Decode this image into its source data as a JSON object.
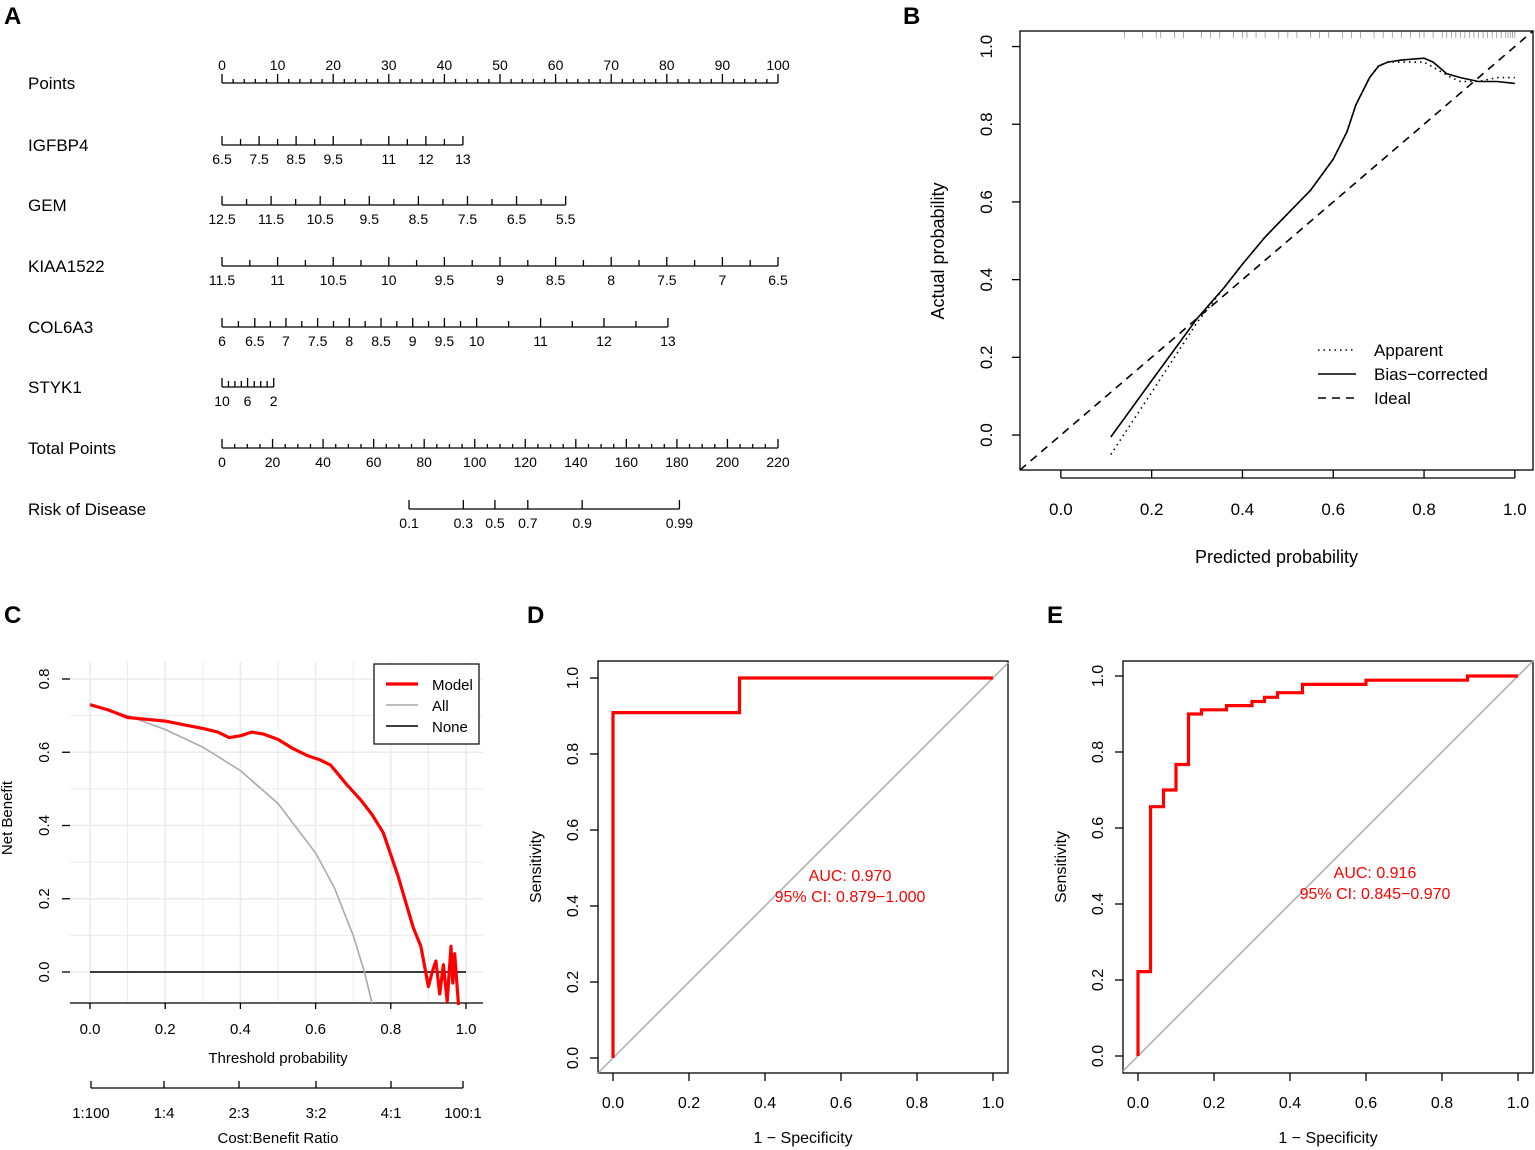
{
  "chart_data": [
    {
      "panel": "A",
      "type": "nomogram",
      "rows": [
        {
          "name": "Points",
          "ticks": [
            "0",
            "10",
            "20",
            "30",
            "40",
            "50",
            "60",
            "70",
            "80",
            "90",
            "100"
          ],
          "minor_per_major": 5,
          "labels_above": true
        },
        {
          "name": "IGFBP4",
          "ticks": [
            "6.5",
            "7.5",
            "8.5",
            "9.5",
            "11",
            "12",
            "13"
          ],
          "tick_points": [
            0,
            6.67,
            13.33,
            20,
            30,
            36.67,
            43.33
          ]
        },
        {
          "name": "GEM",
          "ticks": [
            "12.5",
            "11.5",
            "10.5",
            "9.5",
            "8.5",
            "7.5",
            "6.5",
            "5.5"
          ],
          "tick_points": [
            0,
            8.83,
            17.66,
            26.49,
            35.32,
            44.15,
            52.98,
            61.81
          ]
        },
        {
          "name": "KIAA1522",
          "ticks": [
            "11.5",
            "11",
            "10.5",
            "10",
            "9.5",
            "9",
            "8.5",
            "8",
            "7.5",
            "7",
            "6.5"
          ],
          "tick_points": [
            0,
            10,
            20,
            30,
            40,
            50,
            60,
            70,
            80,
            90,
            100
          ]
        },
        {
          "name": "COL6A3",
          "ticks": [
            "6",
            "6.5",
            "7",
            "7.5",
            "8",
            "8.5",
            "9",
            "9.5",
            "10",
            "11",
            "12",
            "13"
          ],
          "tick_points": [
            0,
            5.9,
            11.5,
            17.2,
            22.9,
            28.6,
            34.3,
            40.0,
            45.8,
            57.3,
            68.7,
            80.2
          ]
        },
        {
          "name": "STYK1",
          "ticks": [
            "10",
            "6",
            "2"
          ],
          "tick_points": [
            0,
            4.6,
            9.3
          ],
          "extra_ticks": [
            1.16,
            2.32,
            3.48,
            5.8,
            6.96,
            8.12
          ]
        },
        {
          "name": "Total Points",
          "ticks": [
            "0",
            "20",
            "40",
            "60",
            "80",
            "100",
            "120",
            "140",
            "160",
            "180",
            "200",
            "220"
          ],
          "range": [
            0,
            220
          ],
          "minor_per_major": 4
        },
        {
          "name": "Risk of Disease",
          "ticks": [
            "0.1",
            "0.3",
            "0.5",
            "0.7",
            "0.9",
            "0.99"
          ],
          "tick_totals": [
            74,
            95.5,
            108,
            121,
            142.5,
            181
          ]
        }
      ]
    },
    {
      "panel": "B",
      "type": "line",
      "xlabel": "Predicted probability",
      "ylabel": "Actual probability",
      "xlim": [
        -0.09,
        1.04
      ],
      "ylim": [
        -0.09,
        1.04
      ],
      "xticks": [
        "0.0",
        "0.2",
        "0.4",
        "0.6",
        "0.8",
        "1.0"
      ],
      "yticks": [
        "0.0",
        "0.2",
        "0.4",
        "0.6",
        "0.8",
        "1.0"
      ],
      "series": [
        {
          "name": "Apparent",
          "style": "dotted",
          "x": [
            0.11,
            0.2,
            0.3,
            0.36,
            0.4,
            0.45,
            0.5,
            0.55,
            0.6,
            0.63,
            0.65,
            0.68,
            0.7,
            0.72,
            0.75,
            0.8,
            0.83,
            0.86,
            0.88,
            0.92,
            0.96,
            1.0
          ],
          "y": [
            -0.05,
            0.11,
            0.29,
            0.38,
            0.44,
            0.51,
            0.57,
            0.63,
            0.71,
            0.78,
            0.85,
            0.92,
            0.95,
            0.96,
            0.96,
            0.96,
            0.94,
            0.92,
            0.91,
            0.91,
            0.92,
            0.92
          ]
        },
        {
          "name": "Bias−corrected",
          "style": "solid",
          "x": [
            0.11,
            0.2,
            0.3,
            0.36,
            0.4,
            0.45,
            0.5,
            0.55,
            0.6,
            0.63,
            0.65,
            0.68,
            0.7,
            0.72,
            0.75,
            0.8,
            0.82,
            0.85,
            0.88,
            0.92,
            0.96,
            1.0
          ],
          "y": [
            -0.005,
            0.14,
            0.3,
            0.38,
            0.44,
            0.51,
            0.57,
            0.63,
            0.71,
            0.78,
            0.85,
            0.92,
            0.95,
            0.96,
            0.965,
            0.97,
            0.96,
            0.93,
            0.92,
            0.91,
            0.91,
            0.905
          ]
        },
        {
          "name": "Ideal",
          "style": "dashed",
          "x": [
            -0.09,
            1.04
          ],
          "y": [
            -0.09,
            1.04
          ]
        }
      ],
      "rug": [
        0.14,
        0.18,
        0.21,
        0.22,
        0.25,
        0.27,
        0.31,
        0.33,
        0.35,
        0.38,
        0.4,
        0.41,
        0.43,
        0.45,
        0.48,
        0.5,
        0.52,
        0.55,
        0.57,
        0.59,
        0.62,
        0.64,
        0.66,
        0.69,
        0.71,
        0.73,
        0.75,
        0.77,
        0.79,
        0.8,
        0.82,
        0.84,
        0.85,
        0.86,
        0.87,
        0.88,
        0.89,
        0.9,
        0.91,
        0.92,
        0.93,
        0.94,
        0.95,
        0.96,
        0.97,
        0.98,
        0.985,
        0.99,
        0.995,
        1.0
      ],
      "legend": {
        "position": "bottom-right",
        "entries": [
          "Apparent",
          "Bias−corrected",
          "Ideal"
        ]
      }
    },
    {
      "panel": "C",
      "type": "line",
      "xlabel": "Threshold probability",
      "ylabel": "Net Benefit",
      "xticks": [
        "0.0",
        "0.2",
        "0.4",
        "0.6",
        "0.8",
        "1.0"
      ],
      "yticks": [
        "0.0",
        "0.2",
        "0.4",
        "0.6",
        "0.8"
      ],
      "ylim": [
        -0.08,
        0.8
      ],
      "xlabel2": "Cost:Benefit Ratio",
      "x2ticks": [
        "1:100",
        "1:4",
        "2:3",
        "3:2",
        "4:1",
        "100:1"
      ],
      "series": [
        {
          "name": "Model",
          "color": "#ff0000",
          "x": [
            0,
            0.05,
            0.1,
            0.15,
            0.2,
            0.25,
            0.3,
            0.34,
            0.37,
            0.4,
            0.43,
            0.46,
            0.5,
            0.54,
            0.58,
            0.61,
            0.64,
            0.66,
            0.68,
            0.72,
            0.75,
            0.78,
            0.8,
            0.82,
            0.84,
            0.86,
            0.88,
            0.9,
            0.91,
            0.92,
            0.93,
            0.94,
            0.95,
            0.96,
            0.965,
            0.97,
            0.98
          ],
          "y": [
            0.73,
            0.715,
            0.695,
            0.69,
            0.685,
            0.675,
            0.665,
            0.655,
            0.64,
            0.645,
            0.655,
            0.65,
            0.635,
            0.61,
            0.59,
            0.58,
            0.565,
            0.54,
            0.515,
            0.47,
            0.43,
            0.38,
            0.32,
            0.26,
            0.19,
            0.12,
            0.07,
            -0.04,
            0.0,
            0.03,
            -0.06,
            0.02,
            -0.08,
            0.07,
            -0.03,
            0.05,
            -0.09
          ]
        },
        {
          "name": "All",
          "color": "#aaaaaa",
          "x": [
            0,
            0.1,
            0.2,
            0.3,
            0.4,
            0.5,
            0.6,
            0.65,
            0.7,
            0.73,
            0.75
          ],
          "y": [
            0.73,
            0.7,
            0.662,
            0.614,
            0.55,
            0.46,
            0.325,
            0.23,
            0.1,
            0.0,
            -0.085
          ]
        },
        {
          "name": "None",
          "color": "#000000",
          "x": [
            0,
            1
          ],
          "y": [
            0,
            0
          ]
        }
      ],
      "legend": {
        "position": "top-right",
        "entries": [
          "Model",
          "All",
          "None"
        ]
      }
    },
    {
      "panel": "D",
      "type": "line",
      "xlabel": "1 − Specificity",
      "ylabel": "Sensitivity",
      "xticks": [
        "0.0",
        "0.2",
        "0.4",
        "0.6",
        "0.8",
        "1.0"
      ],
      "yticks": [
        "0.0",
        "0.2",
        "0.4",
        "0.6",
        "0.8",
        "1.0"
      ],
      "series": [
        {
          "name": "ROC",
          "color": "#ff0000",
          "x": [
            0,
            0,
            0.333,
            0.333,
            1
          ],
          "y": [
            0,
            0.909,
            0.909,
            1,
            1
          ]
        }
      ],
      "annotation": [
        "AUC: 0.970",
        "95% CI: 0.879−1.000"
      ]
    },
    {
      "panel": "E",
      "type": "line",
      "xlabel": "1 − Specificity",
      "ylabel": "Sensitivity",
      "xticks": [
        "0.0",
        "0.2",
        "0.4",
        "0.6",
        "0.8",
        "1.0"
      ],
      "yticks": [
        "0.0",
        "0.2",
        "0.4",
        "0.6",
        "0.8",
        "1.0"
      ],
      "series": [
        {
          "name": "ROC",
          "color": "#ff0000",
          "x": [
            0,
            0,
            0.033,
            0.033,
            0.067,
            0.067,
            0.1,
            0.1,
            0.133,
            0.133,
            0.167,
            0.167,
            0.233,
            0.233,
            0.3,
            0.3,
            0.333,
            0.333,
            0.367,
            0.367,
            0.433,
            0.433,
            0.6,
            0.6,
            0.867,
            0.867,
            1
          ],
          "y": [
            0,
            0.222,
            0.222,
            0.656,
            0.656,
            0.7,
            0.7,
            0.767,
            0.767,
            0.9,
            0.9,
            0.911,
            0.911,
            0.922,
            0.922,
            0.933,
            0.933,
            0.944,
            0.944,
            0.956,
            0.956,
            0.978,
            0.978,
            0.989,
            0.989,
            1,
            1
          ]
        }
      ],
      "annotation": [
        "AUC: 0.916",
        "95% CI: 0.845−0.970"
      ]
    }
  ],
  "panel_labels": [
    "A",
    "B",
    "C",
    "D",
    "E"
  ]
}
